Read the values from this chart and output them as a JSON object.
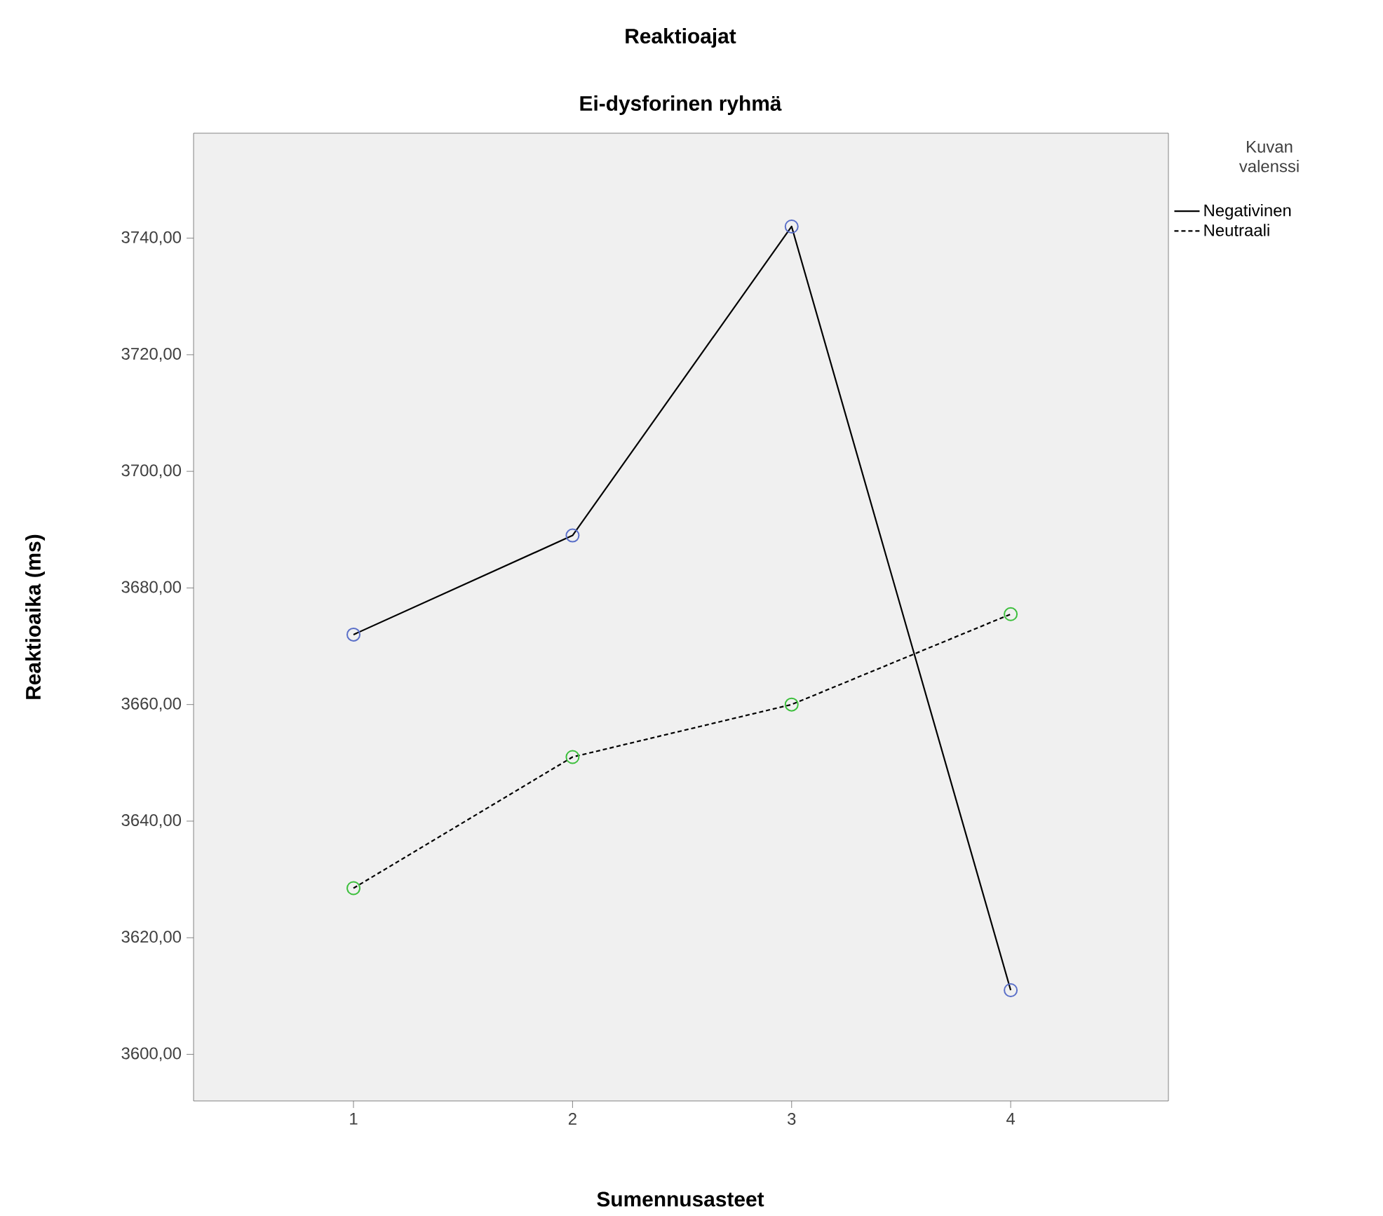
{
  "chart_data": {
    "type": "line",
    "title": "Reaktioajat",
    "subtitle": "Ei-dysforinen ryhmä",
    "xlabel": "Sumennusasteet",
    "ylabel": "Reaktioaika (ms)",
    "legend_title": "Kuvan valenssi",
    "x": [
      1,
      2,
      3,
      4
    ],
    "series": [
      {
        "name": "Negativinen",
        "color": "#000000",
        "colors": [
          "#5a6fc8",
          "#5a6fc8",
          "#5a6fc8",
          "#5a6fc8"
        ],
        "line_style": "solid",
        "values": [
          3672,
          3689,
          3742,
          3611
        ]
      },
      {
        "name": "Neutraali",
        "color": "#000000",
        "colors": [
          "#3cbf3c",
          "#3cbf3c",
          "#3cbf3c",
          "#3cbf3c"
        ],
        "line_style": "dashed",
        "values": [
          3628.5,
          3651,
          3660,
          3675.5
        ]
      }
    ],
    "xlim": [
      0.27,
      4.72
    ],
    "ylim": [
      3592,
      3758
    ],
    "xticks": [
      1,
      2,
      3,
      4
    ],
    "yticks": [
      {
        "value": 3600,
        "label": "3600,00"
      },
      {
        "value": 3620,
        "label": "3620,00"
      },
      {
        "value": 3640,
        "label": "3640,00"
      },
      {
        "value": 3660,
        "label": "3660,00"
      },
      {
        "value": 3680,
        "label": "3680,00"
      },
      {
        "value": 3700,
        "label": "3700,00"
      },
      {
        "value": 3720,
        "label": "3720,00"
      },
      {
        "value": 3740,
        "label": "3740,00"
      }
    ],
    "marker": "circle",
    "grid": false,
    "legend": "top right"
  }
}
